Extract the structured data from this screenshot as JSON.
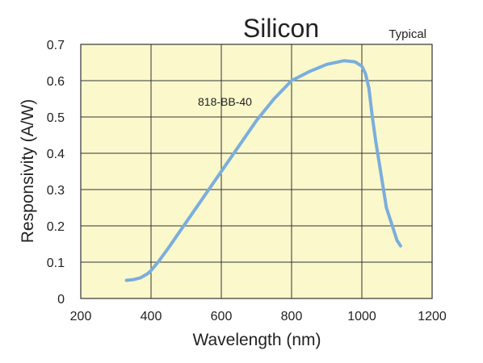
{
  "chart_data": {
    "type": "line",
    "title": "Silicon",
    "annotation": "Typical",
    "xlabel": "Wavelength (nm)",
    "ylabel": "Responsivity (A/W)",
    "xlim": [
      200,
      1200
    ],
    "ylim": [
      0,
      0.7
    ],
    "xticks": [
      "200",
      "400",
      "600",
      "800",
      "1000",
      "1200"
    ],
    "yticks": [
      "0",
      "0.1",
      "0.2",
      "0.3",
      "0.4",
      "0.5",
      "0.6",
      "0.7"
    ],
    "grid": true,
    "colors": {
      "plot_background": "#fbf8cc",
      "grid": "#333333",
      "line": "#7aaedc"
    },
    "series": [
      {
        "name": "818-BB-40",
        "x": [
          330,
          350,
          370,
          390,
          400,
          420,
          450,
          500,
          550,
          600,
          650,
          700,
          750,
          800,
          850,
          900,
          950,
          980,
          1000,
          1010,
          1020,
          1030,
          1040,
          1050,
          1060,
          1070,
          1080,
          1090,
          1100,
          1110
        ],
        "y": [
          0.05,
          0.052,
          0.057,
          0.068,
          0.077,
          0.1,
          0.14,
          0.21,
          0.28,
          0.35,
          0.42,
          0.49,
          0.55,
          0.6,
          0.625,
          0.645,
          0.655,
          0.652,
          0.64,
          0.62,
          0.58,
          0.5,
          0.43,
          0.37,
          0.31,
          0.25,
          0.22,
          0.19,
          0.16,
          0.145
        ]
      }
    ]
  }
}
